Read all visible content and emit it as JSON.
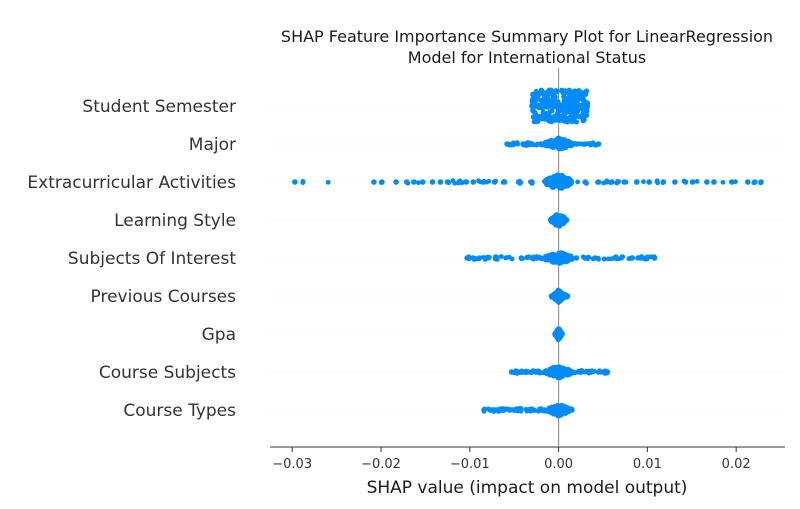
{
  "chart_data": {
    "type": "scatter",
    "subtype": "shap-beeswarm",
    "title_lines": [
      "SHAP Feature Importance Summary Plot for LinearRegression",
      "Model for International Status"
    ],
    "xlabel": "SHAP value (impact on model output)",
    "xlim": [
      -0.0325,
      0.0255
    ],
    "xticks": [
      -0.03,
      -0.02,
      -0.01,
      0.0,
      0.01,
      0.02
    ],
    "xtick_labels": [
      "−0.03",
      "−0.02",
      "−0.01",
      "0.00",
      "0.01",
      "0.02"
    ],
    "point_color": "#008bfb",
    "gridline_color": "#e6e6e6",
    "zero_line_color": "#999999",
    "grid": false,
    "features": [
      {
        "name": "Student Semester",
        "core": [
          -0.003,
          0.0033
        ],
        "core_thickness": 1.0,
        "spread": [
          -0.003,
          -0.0025,
          -0.002,
          -0.0015,
          -0.001,
          -0.0005,
          0.0,
          0.0005,
          0.001,
          0.0015,
          0.002,
          0.0025,
          0.003
        ]
      },
      {
        "name": "Major",
        "core": [
          -0.0015,
          0.0015
        ],
        "core_thickness": 0.35,
        "spread": [
          -0.0058,
          -0.005,
          -0.004,
          -0.003,
          -0.002,
          0.002,
          0.003,
          0.0038,
          0.0045
        ]
      },
      {
        "name": "Extracurricular Activities",
        "core": [
          -0.0015,
          0.0015
        ],
        "core_thickness": 0.45,
        "spread": [
          -0.0297,
          -0.0208,
          -0.0199,
          -0.0183,
          -0.0171,
          -0.0163,
          -0.0153,
          -0.0142,
          -0.0133,
          -0.0125,
          -0.0112,
          -0.0104,
          -0.0096,
          -0.0085,
          -0.0072,
          -0.0061,
          -0.0045,
          -0.003,
          0.003,
          0.0045,
          0.006,
          0.0074,
          0.0088,
          0.0102,
          0.0118,
          0.0131,
          0.0143,
          0.0151,
          0.0167,
          0.0175,
          0.0195,
          0.0213,
          0.0221,
          0.0228
        ]
      },
      {
        "name": "Learning Style",
        "core": [
          -0.0008,
          0.0008
        ],
        "core_thickness": 0.4,
        "spread": [
          -0.0009,
          0.0009
        ]
      },
      {
        "name": "Subjects Of Interest",
        "core": [
          -0.0015,
          0.0015
        ],
        "core_thickness": 0.35,
        "spread": [
          -0.0103,
          -0.0089,
          -0.0071,
          -0.0042,
          -0.003,
          -0.002,
          0.002,
          0.003,
          0.0041,
          0.0063,
          0.0083,
          0.0092,
          0.0099,
          0.0108
        ]
      },
      {
        "name": "Previous Courses",
        "core": [
          -0.0006,
          0.0006
        ],
        "core_thickness": 0.35,
        "spread": [
          -0.0008,
          0.001
        ]
      },
      {
        "name": "Gpa",
        "core": [
          -0.0003,
          0.0003
        ],
        "core_thickness": 0.35,
        "spread": [
          -0.0004,
          0.0004
        ]
      },
      {
        "name": "Course Subjects",
        "core": [
          -0.0015,
          0.0015
        ],
        "core_thickness": 0.35,
        "spread": [
          -0.0053,
          -0.0043,
          -0.0035,
          -0.0025,
          0.0025,
          0.0035,
          0.0045,
          0.0055
        ]
      },
      {
        "name": "Course Types",
        "core": [
          -0.0012,
          0.0012
        ],
        "core_thickness": 0.35,
        "spread": [
          -0.0084,
          -0.0077,
          -0.0069,
          -0.0055,
          -0.0049,
          -0.0028,
          -0.002,
          0.0015,
          0.0012
        ]
      }
    ]
  }
}
